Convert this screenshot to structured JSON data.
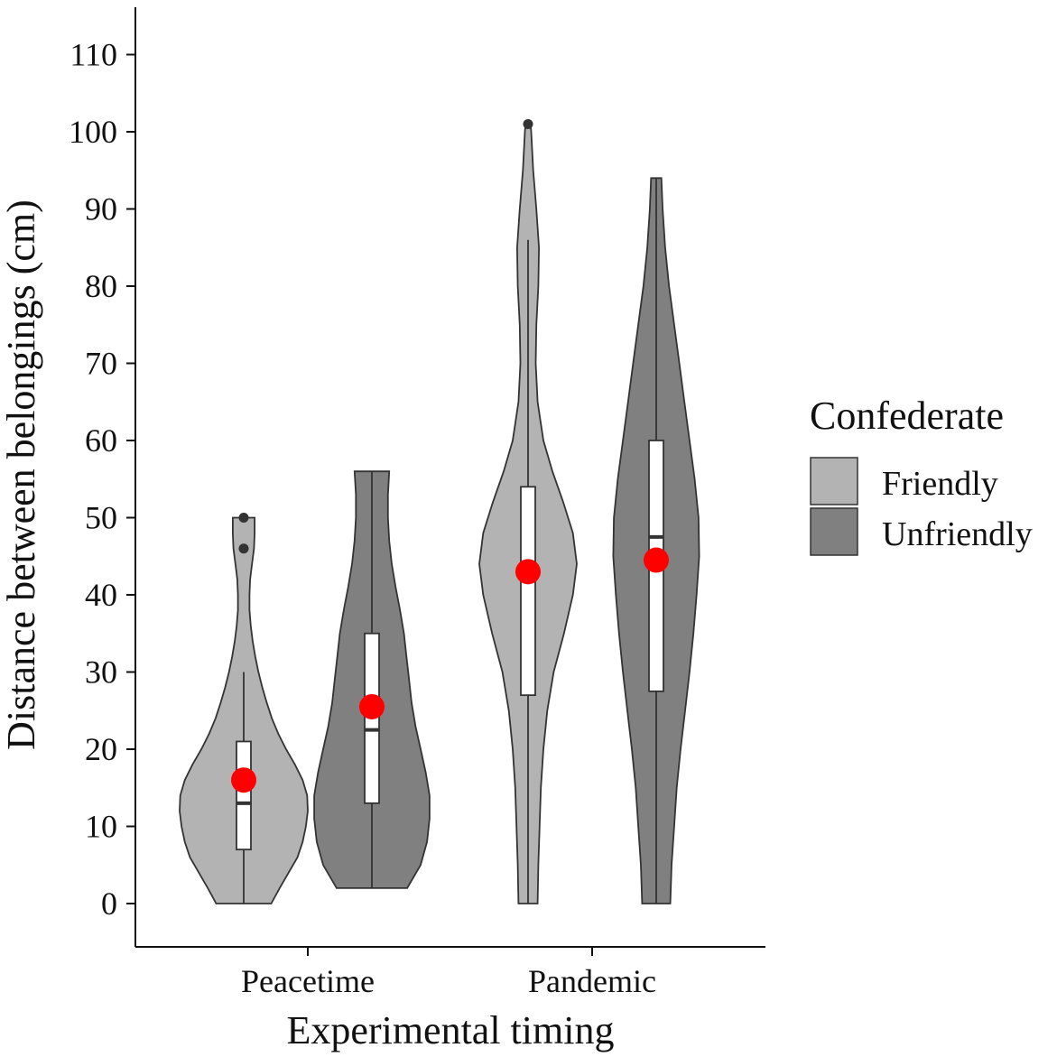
{
  "chart_data": {
    "type": "violin",
    "xlabel": "Experimental timing",
    "ylabel": "Distance between belongings (cm)",
    "categories": [
      "Peacetime",
      "Pandemic"
    ],
    "ylim": [
      -5.5,
      116
    ],
    "yticks": [
      0,
      10,
      20,
      30,
      40,
      50,
      60,
      70,
      80,
      90,
      100,
      110
    ],
    "grid": false,
    "legend": {
      "title": "Confederate",
      "position": "right",
      "entries": [
        {
          "label": "Friendly",
          "color": "#b3b3b3"
        },
        {
          "label": "Unfriendly",
          "color": "#808080"
        }
      ]
    },
    "mean_marker_color": "#ff0000",
    "series": [
      {
        "name": "Friendly",
        "color": "#b3b3b3",
        "groups": [
          {
            "category": "Peacetime",
            "min": 0,
            "q1": 7,
            "median": 13,
            "q3": 21,
            "whisker_low": 0,
            "whisker_high": 30,
            "mean": 16,
            "outliers": [
              46,
              50
            ],
            "density": [
              [
                0,
                0.43
              ],
              [
                2,
                0.56
              ],
              [
                4,
                0.7
              ],
              [
                6,
                0.84
              ],
              [
                8,
                0.92
              ],
              [
                10,
                0.97
              ],
              [
                12,
                1.0
              ],
              [
                14,
                0.99
              ],
              [
                16,
                0.92
              ],
              [
                18,
                0.8
              ],
              [
                20,
                0.66
              ],
              [
                22,
                0.54
              ],
              [
                24,
                0.44
              ],
              [
                26,
                0.36
              ],
              [
                28,
                0.29
              ],
              [
                30,
                0.23
              ],
              [
                32,
                0.18
              ],
              [
                34,
                0.14
              ],
              [
                36,
                0.11
              ],
              [
                38,
                0.09
              ],
              [
                40,
                0.09
              ],
              [
                42,
                0.1
              ],
              [
                44,
                0.13
              ],
              [
                46,
                0.16
              ],
              [
                48,
                0.17
              ],
              [
                50,
                0.17
              ]
            ]
          },
          {
            "category": "Pandemic",
            "min": 0,
            "q1": 27,
            "median": 43,
            "q3": 54,
            "whisker_low": 0,
            "whisker_high": 86,
            "mean": 43,
            "outliers": [
              101
            ],
            "density": [
              [
                0,
                0.15
              ],
              [
                5,
                0.16
              ],
              [
                10,
                0.18
              ],
              [
                15,
                0.2
              ],
              [
                20,
                0.24
              ],
              [
                25,
                0.3
              ],
              [
                30,
                0.4
              ],
              [
                35,
                0.56
              ],
              [
                40,
                0.7
              ],
              [
                44,
                0.76
              ],
              [
                48,
                0.7
              ],
              [
                52,
                0.55
              ],
              [
                56,
                0.38
              ],
              [
                60,
                0.24
              ],
              [
                65,
                0.15
              ],
              [
                70,
                0.12
              ],
              [
                75,
                0.13
              ],
              [
                80,
                0.16
              ],
              [
                85,
                0.17
              ],
              [
                90,
                0.13
              ],
              [
                95,
                0.08
              ],
              [
                100,
                0.05
              ],
              [
                101,
                0.04
              ]
            ]
          }
        ]
      },
      {
        "name": "Unfriendly",
        "color": "#808080",
        "groups": [
          {
            "category": "Peacetime",
            "min": 2,
            "q1": 13,
            "median": 22.5,
            "q3": 35,
            "whisker_low": 2,
            "whisker_high": 56,
            "mean": 25.5,
            "outliers": [],
            "density": [
              [
                2,
                0.55
              ],
              [
                5,
                0.76
              ],
              [
                8,
                0.86
              ],
              [
                11,
                0.9
              ],
              [
                14,
                0.9
              ],
              [
                17,
                0.84
              ],
              [
                20,
                0.76
              ],
              [
                23,
                0.68
              ],
              [
                26,
                0.62
              ],
              [
                29,
                0.58
              ],
              [
                32,
                0.54
              ],
              [
                35,
                0.5
              ],
              [
                38,
                0.44
              ],
              [
                41,
                0.37
              ],
              [
                44,
                0.31
              ],
              [
                47,
                0.27
              ],
              [
                50,
                0.25
              ],
              [
                53,
                0.25
              ],
              [
                56,
                0.27
              ]
            ]
          },
          {
            "category": "Pandemic",
            "min": 0,
            "q1": 27.5,
            "median": 47.5,
            "q3": 60,
            "whisker_low": 0,
            "whisker_high": 94,
            "mean": 44.5,
            "outliers": [],
            "density": [
              [
                0,
                0.22
              ],
              [
                5,
                0.24
              ],
              [
                10,
                0.28
              ],
              [
                15,
                0.32
              ],
              [
                20,
                0.38
              ],
              [
                25,
                0.45
              ],
              [
                30,
                0.52
              ],
              [
                35,
                0.58
              ],
              [
                40,
                0.63
              ],
              [
                45,
                0.67
              ],
              [
                50,
                0.66
              ],
              [
                55,
                0.6
              ],
              [
                60,
                0.52
              ],
              [
                65,
                0.44
              ],
              [
                70,
                0.36
              ],
              [
                75,
                0.28
              ],
              [
                80,
                0.2
              ],
              [
                85,
                0.14
              ],
              [
                90,
                0.1
              ],
              [
                94,
                0.08
              ]
            ]
          }
        ]
      }
    ]
  }
}
